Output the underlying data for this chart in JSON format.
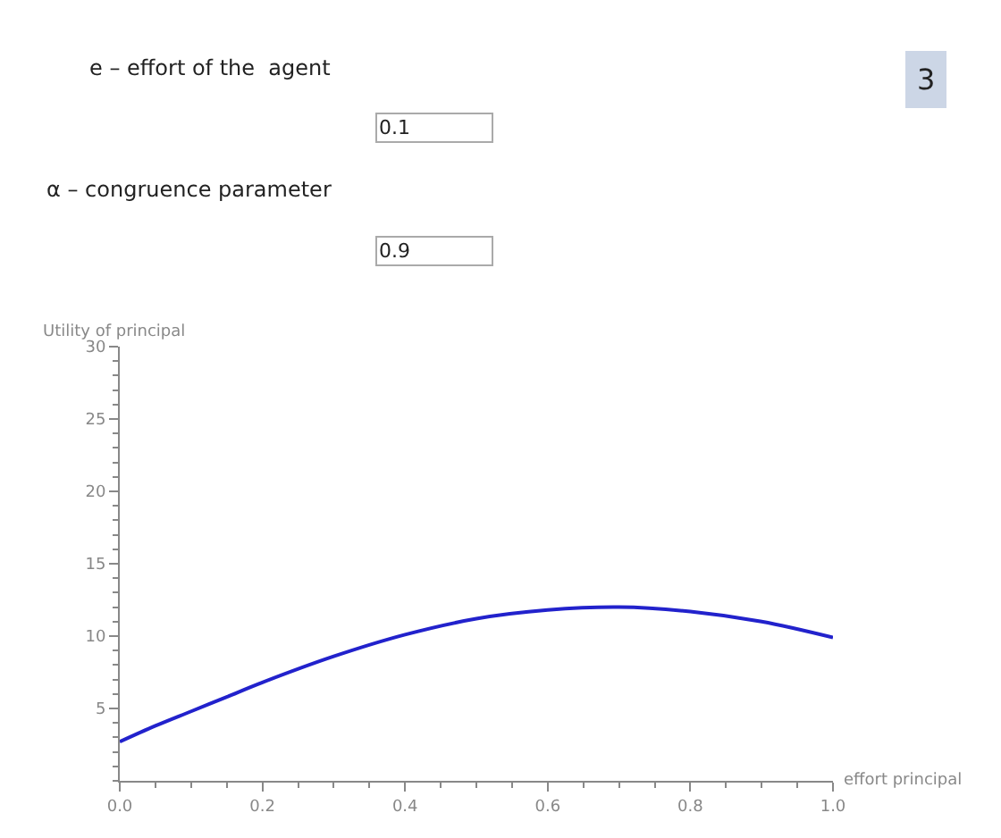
{
  "chart_data": {
    "type": "line",
    "xlabel": "effort principal",
    "ylabel": "Utility of principal",
    "annotations": [
      "e – effort of the  agent",
      "0.1",
      "α – congruence parameter",
      "0.9",
      "3"
    ],
    "x": [
      0,
      0.05,
      0.1,
      0.15,
      0.2,
      0.3,
      0.4,
      0.5,
      0.6,
      0.7,
      0.8,
      0.9,
      1.0
    ],
    "series": [
      {
        "color": "#2222cc",
        "values": [
          2.7,
          3.8,
          4.8,
          5.8,
          6.8,
          8.6,
          10.1,
          11.2,
          11.8,
          12.0,
          11.7,
          11.0,
          9.9
        ]
      }
    ],
    "xlim": [
      0,
      1
    ],
    "xticks": [
      {
        "value": 0,
        "label": "0.0"
      },
      0.2,
      0.4,
      0.6,
      0.8,
      {
        "value": 1,
        "label": "1.0"
      }
    ],
    "ylim": [
      0,
      30
    ],
    "yticks": [
      5,
      10,
      15,
      20,
      25,
      30
    ],
    "marker": "none",
    "line_style": "solid"
  }
}
